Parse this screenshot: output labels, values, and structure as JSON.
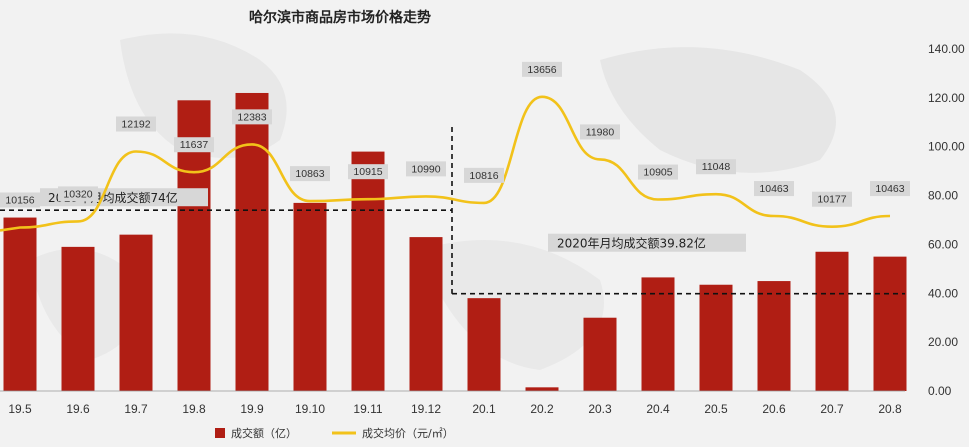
{
  "colors": {
    "bar": "#b01e14",
    "line": "#f2c21a",
    "label_bg": "#d7d7d7"
  },
  "chart_data": {
    "type": "bar",
    "title": "哈尔滨市商品房市场价格走势",
    "categories": [
      "19.5",
      "19.6",
      "19.7",
      "19.8",
      "19.9",
      "19.10",
      "19.11",
      "19.12",
      "20.1",
      "20.2",
      "20.3",
      "20.4",
      "20.5",
      "20.6",
      "20.7",
      "20.8"
    ],
    "series": [
      {
        "name": "成交额（亿）",
        "type": "bar",
        "axis": "right",
        "values": [
          71,
          59,
          64,
          119,
          122,
          77,
          98,
          63,
          38,
          1.5,
          30,
          46.5,
          43.5,
          45,
          57,
          55
        ]
      },
      {
        "name": "成交均价（元/㎡）",
        "type": "line",
        "values": [
          10156,
          10320,
          12192,
          11637,
          12383,
          10863,
          10915,
          10990,
          10816,
          13656,
          11980,
          10905,
          11048,
          10463,
          10177,
          10463
        ],
        "labels": [
          "10156",
          "10320",
          "12192",
          "11637",
          "12383",
          "10863",
          "10915",
          "10990",
          "10816",
          "13656",
          "11980",
          "10905",
          "11048",
          "10463",
          "10177",
          "10463"
        ]
      }
    ],
    "y_right": {
      "ticks": [
        "140.00",
        "120.00",
        "100.00",
        "80.00",
        "60.00",
        "40.00",
        "20.00",
        "0.00"
      ],
      "range": [
        0,
        140
      ]
    },
    "annotations": [
      {
        "text": "2019年月均成交额74亿",
        "value": 74
      },
      {
        "text": "2020年月均成交额39.82亿",
        "value": 39.82
      }
    ],
    "legend_position": "bottom"
  }
}
